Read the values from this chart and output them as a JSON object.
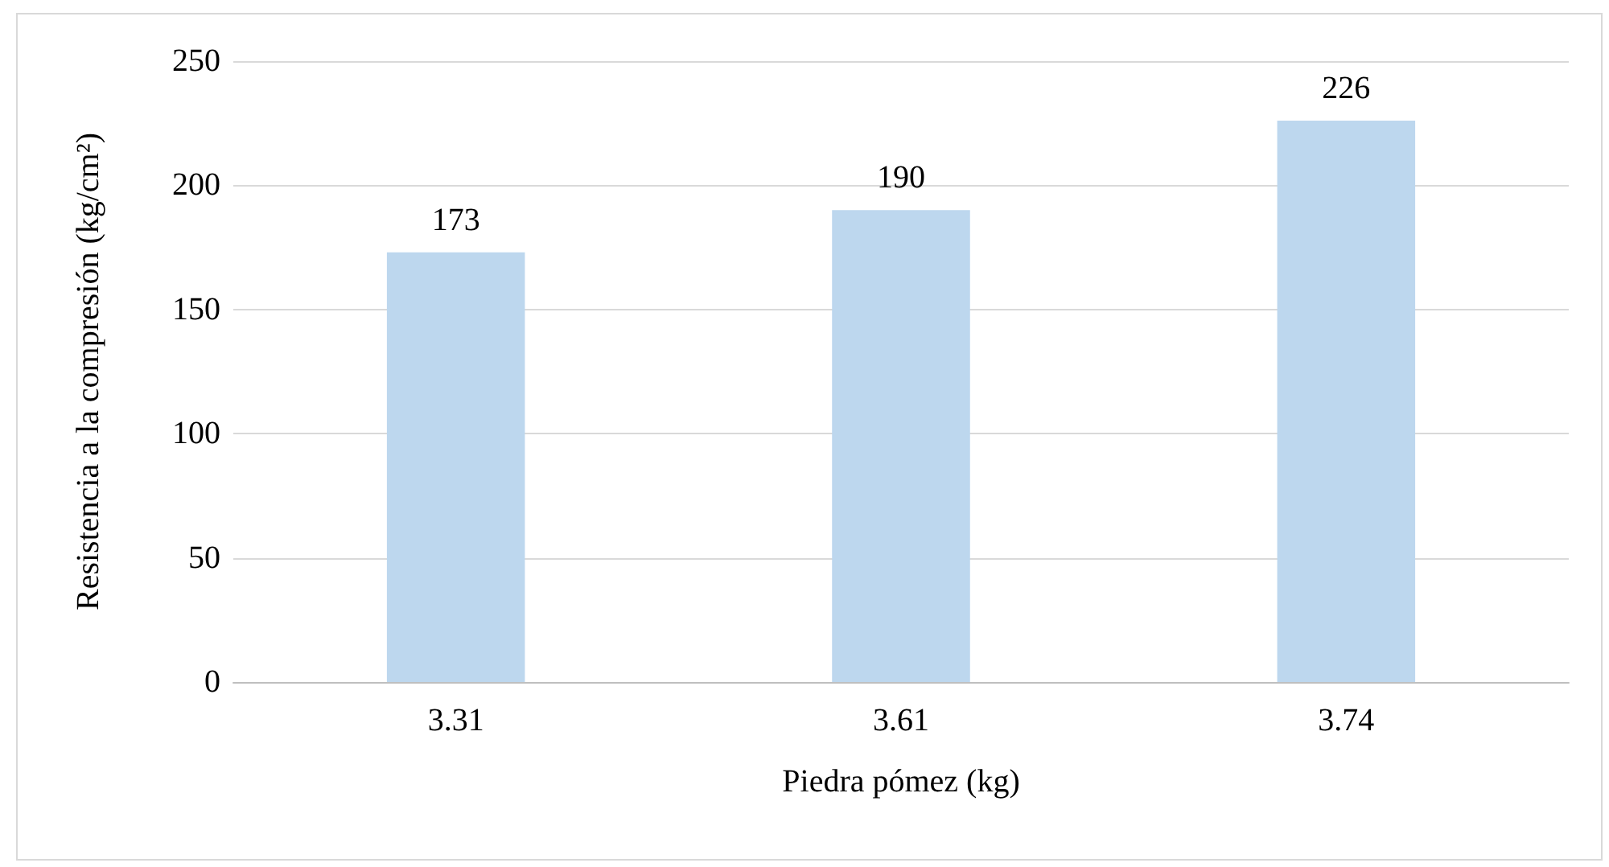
{
  "chart_data": {
    "type": "bar",
    "xlabel": "Piedra pómez (kg)",
    "ylabel": "Resistencia a la compresión (kg/cm²)",
    "categories": [
      "3.31",
      "3.61",
      "3.74"
    ],
    "values": [
      173,
      190,
      226
    ],
    "color": "#bdd7ee",
    "ylim": [
      0,
      250
    ],
    "yticks": [
      0,
      50,
      100,
      150,
      200,
      250
    ],
    "grid": "y",
    "data_labels": true
  }
}
